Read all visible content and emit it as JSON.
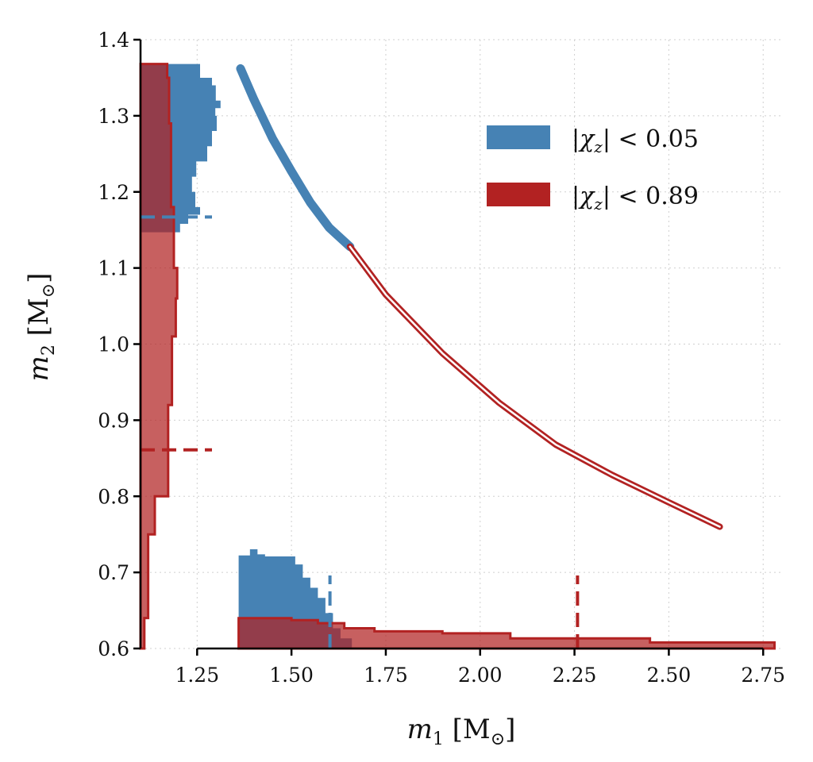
{
  "chart_data": {
    "type": "area",
    "title": "",
    "xlabel": {
      "var": "m",
      "sub": "1",
      "unit": "M",
      "unit_sub": "⊙"
    },
    "ylabel": {
      "var": "m",
      "sub": "2",
      "unit": "M",
      "unit_sub": "⊙"
    },
    "xlim": [
      1.1,
      2.8
    ],
    "ylim": [
      0.6,
      1.4
    ],
    "xticks": [
      "1.25",
      "1.50",
      "1.75",
      "2.00",
      "2.25",
      "2.50",
      "2.75"
    ],
    "yticks": [
      "0.6",
      "0.7",
      "0.8",
      "0.9",
      "1.0",
      "1.1",
      "1.2",
      "1.3",
      "1.4"
    ],
    "grid": true,
    "legend_position": "top-right",
    "series": [
      {
        "key": "blue",
        "name": "|χz| < 0.05",
        "legend_var": "|χ",
        "legend_sub": "z",
        "legend_rest": "| < 0.05",
        "color": "#4682b4",
        "curve_m1": [
          1.365,
          1.4,
          1.45,
          1.5,
          1.55,
          1.6,
          1.655
        ],
        "curve_m2": [
          1.362,
          1.322,
          1.27,
          1.227,
          1.186,
          1.153,
          1.128
        ],
        "m1_hist": {
          "edges": [
            1.36,
            1.39,
            1.41,
            1.43,
            1.51,
            1.53,
            1.55,
            1.57,
            1.59,
            1.61,
            1.63,
            1.66
          ],
          "density": [
            0.092,
            0.098,
            0.093,
            0.091,
            0.083,
            0.07,
            0.06,
            0.05,
            0.035,
            0.02,
            0.01
          ]
        },
        "m2_hist": {
          "edges": [
            1.147,
            1.158,
            1.17,
            1.18,
            1.2,
            1.22,
            1.24,
            1.26,
            1.28,
            1.3,
            1.31,
            1.32,
            1.34,
            1.35,
            1.368
          ],
          "density": [
            0.083,
            0.1,
            0.125,
            0.115,
            0.108,
            0.117,
            0.14,
            0.15,
            0.16,
            0.157,
            0.168,
            0.158,
            0.15,
            0.125
          ]
        },
        "m1_median": 1.602,
        "m2_median": 1.167
      },
      {
        "key": "red",
        "name": "|χz| < 0.89",
        "legend_var": "|χ",
        "legend_sub": "z",
        "legend_rest": "| < 0.89",
        "color": "#b22222",
        "curve_m1": [
          1.655,
          1.75,
          1.9,
          2.05,
          2.2,
          2.35,
          2.5,
          2.635
        ],
        "curve_m2": [
          1.128,
          1.065,
          0.988,
          0.923,
          0.868,
          0.828,
          0.792,
          0.76
        ],
        "m1_hist": {
          "edges": [
            1.36,
            1.5,
            1.57,
            1.64,
            1.72,
            1.9,
            2.08,
            2.45,
            2.78
          ],
          "density": [
            0.03,
            0.028,
            0.025,
            0.02,
            0.017,
            0.015,
            0.01,
            0.006
          ]
        },
        "m2_hist": {
          "edges": [
            0.6,
            0.64,
            0.75,
            0.8,
            0.92,
            1.01,
            1.06,
            1.1,
            1.18,
            1.29,
            1.35,
            1.368
          ],
          "density": [
            0.008,
            0.016,
            0.03,
            0.058,
            0.066,
            0.074,
            0.077,
            0.07,
            0.064,
            0.06,
            0.056
          ]
        },
        "m1_median": 2.258,
        "m2_median": 0.861
      }
    ]
  }
}
